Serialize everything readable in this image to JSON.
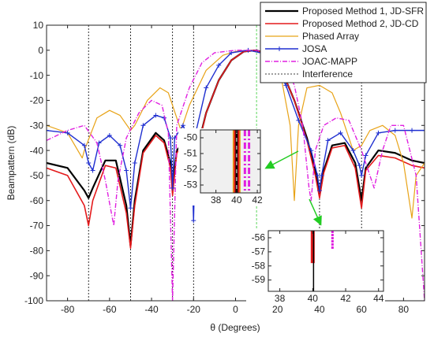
{
  "chart_data": {
    "type": "line",
    "xlabel": "θ (Degrees)",
    "ylabel": "Beampattern (dB)",
    "xlim": [
      -90,
      90
    ],
    "ylim": [
      -100,
      10
    ],
    "xticks": [
      -80,
      -60,
      -40,
      -20,
      0,
      20,
      40,
      60,
      80
    ],
    "yticks": [
      10,
      0,
      -10,
      -20,
      -30,
      -40,
      -50,
      -60,
      -70,
      -80,
      -90,
      -100
    ],
    "series": [
      {
        "name": "Proposed Method 1, JD-SFR",
        "color": "#000000",
        "width": 2.2,
        "x": [
          -90,
          -80,
          -72,
          -70,
          -68,
          -62,
          -57,
          -52,
          -50,
          -48,
          -44,
          -38,
          -34,
          -31,
          -30,
          -28,
          -24,
          -21,
          -20,
          -19,
          -14,
          -8,
          -2,
          4,
          10,
          16,
          22,
          28,
          34,
          38,
          40,
          42,
          46,
          52,
          57,
          60,
          62,
          68,
          76,
          84,
          90
        ],
        "values": [
          -45,
          -47,
          -56,
          -59,
          -55,
          -44,
          -44,
          -62,
          -78,
          -60,
          -40,
          -33,
          -36,
          -45,
          -55,
          -40,
          -36,
          -45,
          -52,
          -42,
          -25,
          -12,
          -4,
          -0.5,
          0,
          -2,
          -8,
          -20,
          -35,
          -48,
          -58,
          -48,
          -38,
          -37,
          -45,
          -60,
          -47,
          -40,
          -41,
          -44,
          -45
        ]
      },
      {
        "name": "Proposed Method 2, JD-CD",
        "color": "#e41a1c",
        "width": 1.6,
        "x": [
          -90,
          -80,
          -72,
          -70,
          -68,
          -62,
          -57,
          -52,
          -50,
          -48,
          -44,
          -38,
          -34,
          -31,
          -30,
          -28,
          -24,
          -21,
          -20,
          -19,
          -14,
          -8,
          -2,
          4,
          10,
          16,
          22,
          28,
          34,
          38,
          40,
          42,
          46,
          52,
          57,
          60,
          62,
          68,
          76,
          84,
          90
        ],
        "values": [
          -47,
          -50,
          -62,
          -70,
          -60,
          -46,
          -47,
          -65,
          -79,
          -62,
          -41,
          -34,
          -37,
          -47,
          -58,
          -41,
          -37,
          -47,
          -55,
          -43,
          -25,
          -12,
          -4,
          -0.5,
          0,
          -2,
          -8,
          -20,
          -36,
          -50,
          -59,
          -49,
          -39,
          -38,
          -47,
          -63,
          -48,
          -42,
          -43,
          -46,
          -47
        ]
      },
      {
        "name": "Phased Array",
        "color": "#e8a317",
        "width": 1.2,
        "x": [
          -90,
          -80,
          -73,
          -72,
          -66,
          -60,
          -55,
          -50,
          -48,
          -42,
          -36,
          -32,
          -28,
          -26,
          -22,
          -14,
          -6,
          0,
          6,
          12,
          18,
          22,
          26,
          28,
          30,
          34,
          40,
          46,
          50,
          54,
          56,
          60,
          64,
          70,
          76,
          80,
          84,
          86,
          90
        ],
        "values": [
          -30,
          -33,
          -43,
          -40,
          -27,
          -24,
          -26,
          -32,
          -30,
          -20,
          -15,
          -17,
          -27,
          -32,
          -22,
          -8,
          -2,
          -0.5,
          0,
          -1,
          -6,
          -12,
          -30,
          -60,
          -30,
          -15,
          -14,
          -17,
          -25,
          -35,
          -40,
          -38,
          -32,
          -30,
          -34,
          -45,
          -67,
          -50,
          -45
        ]
      },
      {
        "name": "JOSA",
        "color": "#1f2fd0",
        "width": 1.4,
        "marker": "plus",
        "x": [
          -90,
          -80,
          -72,
          -70,
          -68,
          -65,
          -60,
          -55,
          -52,
          -50,
          -48,
          -44,
          -38,
          -34,
          -31,
          -30,
          -29,
          -25,
          -21,
          -20,
          -19,
          -14,
          -8,
          -2,
          6,
          12,
          18,
          24,
          30,
          36,
          39,
          40,
          41,
          44,
          50,
          56,
          59,
          60,
          62,
          68,
          76,
          84,
          90
        ],
        "values": [
          -32,
          -33,
          -38,
          -45,
          -48,
          -37,
          -34,
          -38,
          -48,
          -63,
          -45,
          -30,
          -26,
          -27,
          -35,
          -55,
          -35,
          -30,
          -38,
          -68,
          -33,
          -15,
          -6,
          -1,
          0,
          -1,
          -5,
          -14,
          -28,
          -40,
          -50,
          -56,
          -50,
          -36,
          -33,
          -40,
          -46,
          -50,
          -42,
          -33,
          -32,
          -32,
          -32
        ]
      },
      {
        "name": "JOAC-MAPP",
        "color": "#e020e0",
        "width": 1.4,
        "dash": "6 2 1 2",
        "x": [
          -90,
          -80,
          -72,
          -66,
          -62,
          -58,
          -56,
          -52,
          -46,
          -40,
          -35,
          -32,
          -30,
          -28,
          -22,
          -16,
          -10,
          0,
          10,
          18,
          24,
          28,
          32,
          35,
          36,
          38,
          42,
          48,
          54,
          60,
          66,
          70,
          74,
          80,
          86,
          90
        ],
        "values": [
          -36,
          -32,
          -30,
          -37,
          -52,
          -70,
          -52,
          -35,
          -25,
          -20,
          -22,
          -33,
          -100,
          -30,
          -15,
          -5,
          -1,
          0,
          0,
          -2,
          -6,
          -14,
          -30,
          -55,
          -60,
          -40,
          -30,
          -27,
          -28,
          -40,
          -55,
          -40,
          -30,
          -30,
          -50,
          -100
        ]
      }
    ],
    "interference": {
      "name": "Interference",
      "color": "#000000",
      "x": [
        -70,
        -50,
        -30,
        -20,
        40,
        60
      ]
    },
    "reference_x": 10,
    "legend": "top-right",
    "insets": [
      {
        "xlim": [
          36.5,
          42.3
        ],
        "ylim": [
          -53.5,
          -49.5
        ],
        "xticks": [
          38,
          40,
          42
        ],
        "yticks": [
          -50,
          -51,
          -52,
          -53
        ],
        "background": "#f0f0f0",
        "lines": [
          {
            "color": "#e8a317",
            "width": 10,
            "x": [
              40,
              40
            ],
            "values": [
              -49.5,
              -53.5
            ]
          },
          {
            "color": "#e41a1c",
            "width": 7,
            "x": [
              40,
              40
            ],
            "values": [
              -49.5,
              -53.5
            ]
          },
          {
            "color": "#000000",
            "width": 3,
            "x": [
              40,
              40
            ],
            "values": [
              -49.5,
              -53.5
            ]
          },
          {
            "color": "#e020e0",
            "width": 3,
            "dash": "8 3 2 3",
            "x": [
              40.8,
              40.8
            ],
            "values": [
              -49.5,
              -53.5
            ]
          },
          {
            "color": "#e020e0",
            "width": 3,
            "dash": "8 3 2 3",
            "x": [
              41.2,
              41.2
            ],
            "values": [
              -49.5,
              -53.5
            ]
          }
        ]
      },
      {
        "xlim": [
          37.3,
          44.3
        ],
        "ylim": [
          -59.8,
          -55.5
        ],
        "xticks": [
          38,
          40,
          42,
          44
        ],
        "yticks": [
          -56,
          -57,
          -58,
          -59
        ],
        "background": "#ffffff",
        "lines": [
          {
            "color": "#e41a1c",
            "width": 5,
            "x": [
              40,
              40
            ],
            "values": [
              -55.5,
              -57.8
            ]
          },
          {
            "color": "#000000",
            "width": 1.5,
            "x": [
              40.05,
              40.05
            ],
            "values": [
              -55.5,
              -59.8
            ]
          },
          {
            "color": "#e020e0",
            "width": 3,
            "dash": "3 1",
            "x": [
              41.2,
              41.2
            ],
            "values": [
              -55.5,
              -56.8
            ]
          }
        ]
      }
    ]
  }
}
